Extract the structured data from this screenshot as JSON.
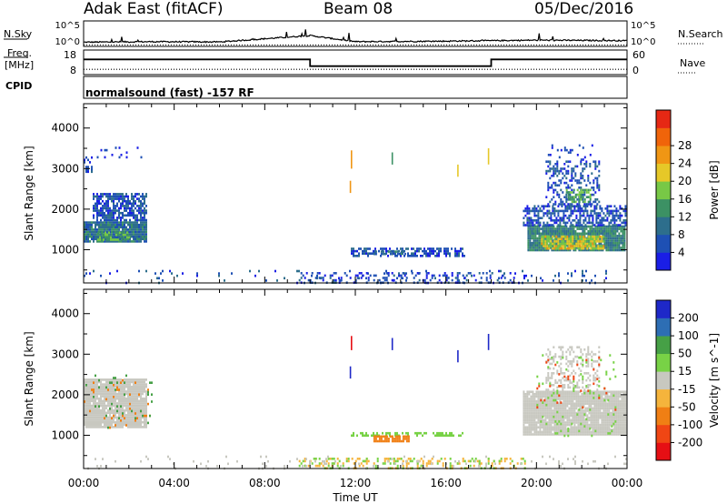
{
  "header": {
    "radar": "Adak East (fitACF)",
    "beam": "Beam 08",
    "date": "05/Dec/2016"
  },
  "top_panels": {
    "nsky_label": "N.Sky",
    "nsearch_label": "N.Search",
    "freq_label_1": "Freq.",
    "freq_label_2": "[MHz]",
    "nave_label": "Nave",
    "cpid_label": "CPID",
    "noise_ticks": [
      "10^5",
      "10^0"
    ],
    "freq_ticks": [
      "18",
      "8"
    ],
    "nave_ticks": [
      "60",
      "0"
    ],
    "cpid_text": "normalsound (fast) -157 RF"
  },
  "colors": {
    "power_scale": [
      "#1a1ee6",
      "#1e50b4",
      "#2d6e8c",
      "#3c9164",
      "#78c846",
      "#e6c828",
      "#f09614",
      "#f0640a",
      "#e62814"
    ],
    "velocity_scale": [
      "#e60f14",
      "#f04614",
      "#f07f14",
      "#f5b43c",
      "#c8c8c0",
      "#78d246",
      "#46a046",
      "#2d6eb4",
      "#1e28c8"
    ]
  },
  "chart_data": [
    {
      "type": "line",
      "name": "noise",
      "y_ticks": [
        "10^5",
        "10^0"
      ],
      "series": [
        {
          "name": "N.Sky",
          "points": [
            [
              0,
              0.7
            ],
            [
              3,
              0.8
            ],
            [
              6,
              0.75
            ],
            [
              10,
              2.0
            ],
            [
              12,
              0.8
            ],
            [
              16,
              0.9
            ],
            [
              20,
              1.1
            ],
            [
              24,
              1.0
            ]
          ]
        },
        {
          "name": "N.Search",
          "points": [
            [
              0,
              0.3
            ],
            [
              24,
              0.3
            ]
          ]
        }
      ]
    },
    {
      "type": "line",
      "name": "frequency_nave",
      "freq_ylim": [
        8,
        18
      ],
      "nave_ylim": [
        0,
        60
      ],
      "series": [
        {
          "name": "Freq.",
          "points": [
            [
              0,
              14.5
            ],
            [
              10,
              14.5
            ],
            [
              10,
              11
            ],
            [
              18,
              11
            ],
            [
              18,
              14.5
            ],
            [
              24,
              14.5
            ]
          ]
        },
        {
          "name": "Nave",
          "points": [
            [
              0,
              8
            ],
            [
              24,
              8
            ]
          ]
        }
      ]
    },
    {
      "type": "heatmap",
      "name": "power",
      "ylabel": "Slant Range [km]",
      "xlim": [
        0,
        24
      ],
      "ylim": [
        180,
        4600
      ],
      "y_ticks": [
        1000,
        2000,
        3000,
        4000
      ],
      "colorbar_title": "Power [dB]",
      "colorbar_ticks": [
        4,
        8,
        12,
        16,
        20,
        24,
        28
      ],
      "colorbar_range": [
        0,
        30
      ],
      "regions": [
        {
          "t0": 0,
          "t1": 2.8,
          "r0": 1200,
          "r1": 1700,
          "v": 10,
          "density": 0.95
        },
        {
          "t0": 0.4,
          "t1": 2.8,
          "r0": 1700,
          "r1": 2400,
          "v": 6,
          "density": 0.75
        },
        {
          "t0": 0.6,
          "t1": 2.0,
          "r0": 1250,
          "r1": 1450,
          "v": 16,
          "density": 0.6
        },
        {
          "t0": 0,
          "t1": 0.4,
          "r0": 2900,
          "r1": 3300,
          "v": 5,
          "density": 0.4
        },
        {
          "t0": 0.5,
          "t1": 3.0,
          "r0": 3300,
          "r1": 3600,
          "v": 4,
          "density": 0.08
        },
        {
          "t0": 19.6,
          "t1": 23.9,
          "r0": 1000,
          "r1": 1600,
          "v": 12,
          "density": 0.95
        },
        {
          "t0": 20.2,
          "t1": 23.0,
          "r0": 1050,
          "r1": 1350,
          "v": 21,
          "density": 0.75
        },
        {
          "t0": 19.4,
          "t1": 23.9,
          "r0": 1600,
          "r1": 2100,
          "v": 6,
          "density": 0.6
        },
        {
          "t0": 20.4,
          "t1": 22.8,
          "r0": 2100,
          "r1": 3200,
          "v": 6,
          "density": 0.35
        },
        {
          "t0": 21.3,
          "t1": 22.4,
          "r0": 2200,
          "r1": 2500,
          "v": 16,
          "density": 0.55
        },
        {
          "t0": 20.5,
          "t1": 22.5,
          "r0": 3200,
          "r1": 3600,
          "v": 4,
          "density": 0.12
        },
        {
          "t0": 11.8,
          "t1": 16.8,
          "r0": 850,
          "r1": 1050,
          "v": 6,
          "density": 0.55
        },
        {
          "t0": 12.8,
          "t1": 14.2,
          "r0": 880,
          "r1": 980,
          "v": 9,
          "density": 0.7
        },
        {
          "t0": 0,
          "t1": 24,
          "r0": 180,
          "r1": 500,
          "v": 6,
          "density": 0.06
        },
        {
          "t0": 9.5,
          "t1": 19.0,
          "r0": 180,
          "r1": 450,
          "v": 5,
          "density": 0.25
        }
      ],
      "streaks": [
        {
          "t": 11.8,
          "r0": 3000,
          "r1": 3450,
          "v": 26
        },
        {
          "t": 11.75,
          "r0": 2400,
          "r1": 2700,
          "v": 26
        },
        {
          "t": 13.6,
          "r0": 3100,
          "r1": 3400,
          "v": 12
        },
        {
          "t": 16.5,
          "r0": 2800,
          "r1": 3100,
          "v": 22
        },
        {
          "t": 17.85,
          "r0": 3100,
          "r1": 3500,
          "v": 22
        }
      ]
    },
    {
      "type": "heatmap",
      "name": "velocity",
      "ylabel": "Slant Range [km]",
      "xlabel": "Time UT",
      "xlim": [
        0,
        24
      ],
      "ylim": [
        180,
        4600
      ],
      "y_ticks": [
        1000,
        2000,
        3000,
        4000
      ],
      "x_ticks": [
        "00:00",
        "04:00",
        "08:00",
        "12:00",
        "16:00",
        "20:00",
        "00:00"
      ],
      "x_tick_values": [
        0,
        4,
        8,
        12,
        16,
        20,
        24
      ],
      "colorbar_title": "Velocity [m s^-1]",
      "colorbar_ticks": [
        -200,
        -100,
        -50,
        -15,
        15,
        50,
        100,
        200
      ],
      "regions": [
        {
          "t0": 0,
          "t1": 2.8,
          "r0": 1200,
          "r1": 2400,
          "v": 0,
          "density": 0.95
        },
        {
          "t0": 0,
          "t1": 3.0,
          "r0": 1200,
          "r1": 2500,
          "v": -80,
          "density": 0.04
        },
        {
          "t0": 0,
          "t1": 3.0,
          "r0": 1200,
          "r1": 2500,
          "v": 70,
          "density": 0.04
        },
        {
          "t0": 19.4,
          "t1": 23.9,
          "r0": 1000,
          "r1": 2100,
          "v": 0,
          "density": 0.95
        },
        {
          "t0": 20.4,
          "t1": 22.8,
          "r0": 2100,
          "r1": 3200,
          "v": 0,
          "density": 0.35
        },
        {
          "t0": 20.0,
          "t1": 23.5,
          "r0": 1000,
          "r1": 3000,
          "v": 30,
          "density": 0.06
        },
        {
          "t0": 20.0,
          "t1": 23.5,
          "r0": 1600,
          "r1": 3000,
          "v": -150,
          "density": 0.04
        },
        {
          "t0": 11.8,
          "t1": 16.8,
          "r0": 1000,
          "r1": 1080,
          "v": 30,
          "density": 0.55
        },
        {
          "t0": 12.8,
          "t1": 14.4,
          "r0": 860,
          "r1": 1000,
          "v": -60,
          "density": 0.8
        },
        {
          "t0": 9.5,
          "t1": 19.5,
          "r0": 180,
          "r1": 450,
          "v": -40,
          "density": 0.2
        },
        {
          "t0": 9.5,
          "t1": 19.5,
          "r0": 180,
          "r1": 450,
          "v": 30,
          "density": 0.12
        },
        {
          "t0": 0,
          "t1": 24,
          "r0": 180,
          "r1": 500,
          "v": 0,
          "density": 0.05
        }
      ],
      "streaks": [
        {
          "t": 11.8,
          "r0": 3100,
          "r1": 3450,
          "v": -200
        },
        {
          "t": 11.75,
          "r0": 2400,
          "r1": 2700,
          "v": 200
        },
        {
          "t": 13.6,
          "r0": 3100,
          "r1": 3400,
          "v": 200
        },
        {
          "t": 16.5,
          "r0": 2800,
          "r1": 3100,
          "v": 200
        },
        {
          "t": 17.85,
          "r0": 3100,
          "r1": 3500,
          "v": 200
        }
      ]
    }
  ]
}
